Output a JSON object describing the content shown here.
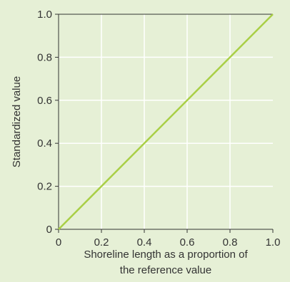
{
  "chart_data": {
    "type": "line",
    "title": "",
    "xlabel": [
      "Shoreline length as a proportion of",
      "the reference value"
    ],
    "ylabel": "Standardized value",
    "xlim": [
      0,
      1
    ],
    "ylim": [
      0,
      1
    ],
    "x_ticks": [
      "0",
      "0.2",
      "0.4",
      "0.6",
      "0.8",
      "1.0"
    ],
    "y_ticks": [
      "0",
      "0.2",
      "0.4",
      "0.6",
      "0.8",
      "1.0"
    ],
    "grid": true,
    "legend": "none",
    "series": [
      {
        "x": [
          0,
          1
        ],
        "y": [
          0,
          1
        ],
        "color": "#a9cf46"
      }
    ],
    "colors": {
      "background": "#e6f0d6",
      "plot_background": "#e6f0d6",
      "grid": "#ffffff",
      "axis": "#333333",
      "line": "#a9cf46"
    }
  }
}
